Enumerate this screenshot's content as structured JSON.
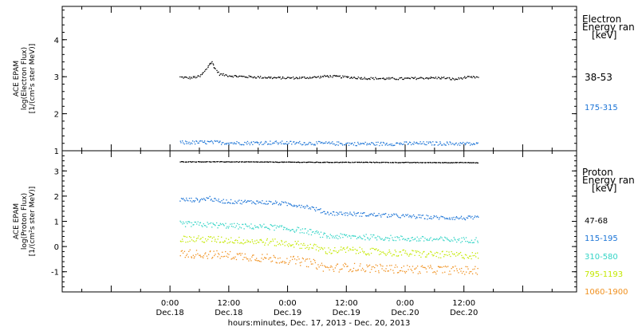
{
  "xaxis": {
    "title": "hours:minutes, Dec. 17, 2013 - Dec. 20, 2013",
    "range_hours": [
      -22,
      83
    ],
    "major_ticks": [
      {
        "hour": 0,
        "time": "0:00",
        "date": "Dec.18"
      },
      {
        "hour": 12,
        "time": "12:00",
        "date": "Dec.18"
      },
      {
        "hour": 24,
        "time": "0:00",
        "date": "Dec.19"
      },
      {
        "hour": 36,
        "time": "12:00",
        "date": "Dec.19"
      },
      {
        "hour": 48,
        "time": "0:00",
        "date": "Dec.20"
      },
      {
        "hour": 60,
        "time": "12:00",
        "date": "Dec.20"
      }
    ]
  },
  "chart_data": [
    {
      "type": "scatter",
      "panel": "electron",
      "ylabel": [
        "ACE EPAM",
        "log(Electron Flux)",
        "[1/(cm²s ster MeV)]"
      ],
      "ylim": [
        1,
        4.9
      ],
      "yticks": [
        1,
        2,
        3,
        4
      ],
      "legend_title": [
        "Electron",
        "Energy ran",
        "[keV]"
      ],
      "series": [
        {
          "name": "38-53",
          "color": "#000000",
          "x": [
            2,
            4,
            6,
            7,
            8,
            8.5,
            9,
            10,
            12,
            14,
            18,
            22,
            26,
            30,
            32,
            36,
            40,
            44,
            48,
            52,
            56,
            58,
            60,
            63
          ],
          "y": [
            3.0,
            2.98,
            3.02,
            3.15,
            3.35,
            3.4,
            3.25,
            3.08,
            3.04,
            3.02,
            3.0,
            2.98,
            2.98,
            3.0,
            3.03,
            3.0,
            2.97,
            2.96,
            2.96,
            2.98,
            2.98,
            2.94,
            2.99,
            3.0
          ]
        },
        {
          "name": "175-315",
          "color": "#1a73d6",
          "x": [
            2,
            8,
            14,
            20,
            26,
            32,
            38,
            44,
            50,
            56,
            60,
            63
          ],
          "y": [
            1.23,
            1.24,
            1.22,
            1.23,
            1.22,
            1.21,
            1.2,
            1.2,
            1.21,
            1.21,
            1.2,
            1.19
          ]
        }
      ]
    },
    {
      "type": "scatter",
      "panel": "proton",
      "ylabel": [
        "ACE EPAM",
        "log(Proton Flux)",
        "[1/(cm²s ster MeV)]"
      ],
      "ylim": [
        -1.8,
        3.8
      ],
      "yticks": [
        -1,
        0,
        1,
        2,
        3
      ],
      "legend_title": [
        "Proton",
        "Energy ran",
        "[keV]"
      ],
      "series": [
        {
          "name": "47-68",
          "color": "#000000",
          "x": [
            2,
            10,
            20,
            30,
            40,
            50,
            60,
            63
          ],
          "y": [
            3.38,
            3.38,
            3.37,
            3.36,
            3.36,
            3.35,
            3.35,
            3.34
          ]
        },
        {
          "name": "115-195",
          "color": "#1a73d6",
          "x": [
            2,
            6,
            8,
            9,
            12,
            18,
            22,
            26,
            28,
            30,
            32,
            36,
            42,
            48,
            54,
            60,
            63
          ],
          "y": [
            1.88,
            1.86,
            1.95,
            1.85,
            1.8,
            1.78,
            1.74,
            1.66,
            1.6,
            1.48,
            1.35,
            1.32,
            1.27,
            1.22,
            1.17,
            1.15,
            1.15
          ]
        },
        {
          "name": "310-580",
          "color": "#33d4c6",
          "x": [
            2,
            8,
            14,
            20,
            26,
            29,
            32,
            36,
            42,
            48,
            54,
            60,
            63
          ],
          "y": [
            0.92,
            0.88,
            0.82,
            0.8,
            0.68,
            0.58,
            0.42,
            0.42,
            0.38,
            0.33,
            0.3,
            0.28,
            0.28
          ]
        },
        {
          "name": "795-1193",
          "color": "#c4e800",
          "x": [
            2,
            8,
            14,
            20,
            26,
            29,
            32,
            36,
            42,
            48,
            54,
            60,
            63
          ],
          "y": [
            0.32,
            0.3,
            0.26,
            0.2,
            0.1,
            0.0,
            -0.15,
            -0.12,
            -0.2,
            -0.25,
            -0.3,
            -0.33,
            -0.35
          ]
        },
        {
          "name": "1060-1900",
          "color": "#f0901e",
          "x": [
            2,
            8,
            14,
            20,
            26,
            29,
            32,
            36,
            42,
            48,
            54,
            60,
            63
          ],
          "y": [
            -0.25,
            -0.3,
            -0.35,
            -0.45,
            -0.55,
            -0.65,
            -0.85,
            -0.8,
            -0.85,
            -0.88,
            -0.9,
            -0.93,
            -0.95
          ]
        }
      ]
    }
  ]
}
